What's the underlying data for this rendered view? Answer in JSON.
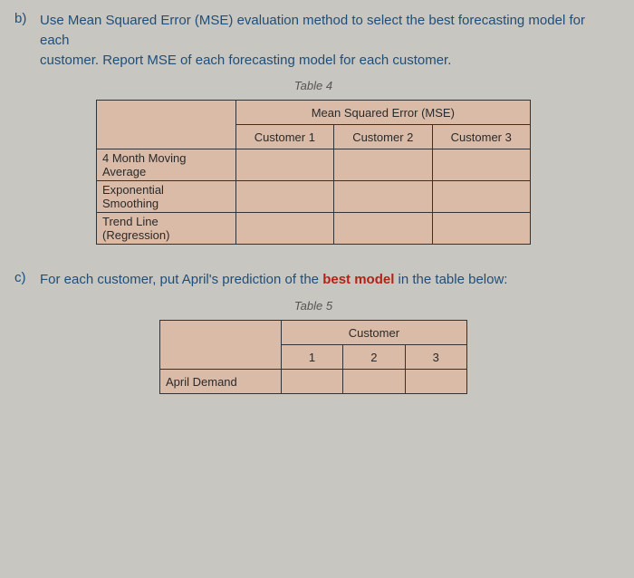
{
  "question_b": {
    "label": "b)",
    "text_line1": "Use Mean Squared Error (MSE) evaluation method to select the best forecasting model for each",
    "text_line2": "customer. Report MSE of each forecasting model for each customer."
  },
  "table4": {
    "caption": "Table 4",
    "group_header": "Mean Squared Error (MSE)",
    "columns": [
      "Customer 1",
      "Customer 2",
      "Customer 3"
    ],
    "rows": [
      {
        "label_l1": "4 Month Moving",
        "label_l2": "Average"
      },
      {
        "label_l1": "Exponential",
        "label_l2": "Smoothing"
      },
      {
        "label_l1": "Trend Line",
        "label_l2": "(Regression)"
      }
    ]
  },
  "question_c": {
    "label": "c)",
    "text_before": "For each customer, put April's prediction of the ",
    "best_word": "best model",
    "text_after": " in the table below:"
  },
  "table5": {
    "caption": "Table 5",
    "group_header": "Customer",
    "columns": [
      "1",
      "2",
      "3"
    ],
    "row_label": "April Demand"
  }
}
